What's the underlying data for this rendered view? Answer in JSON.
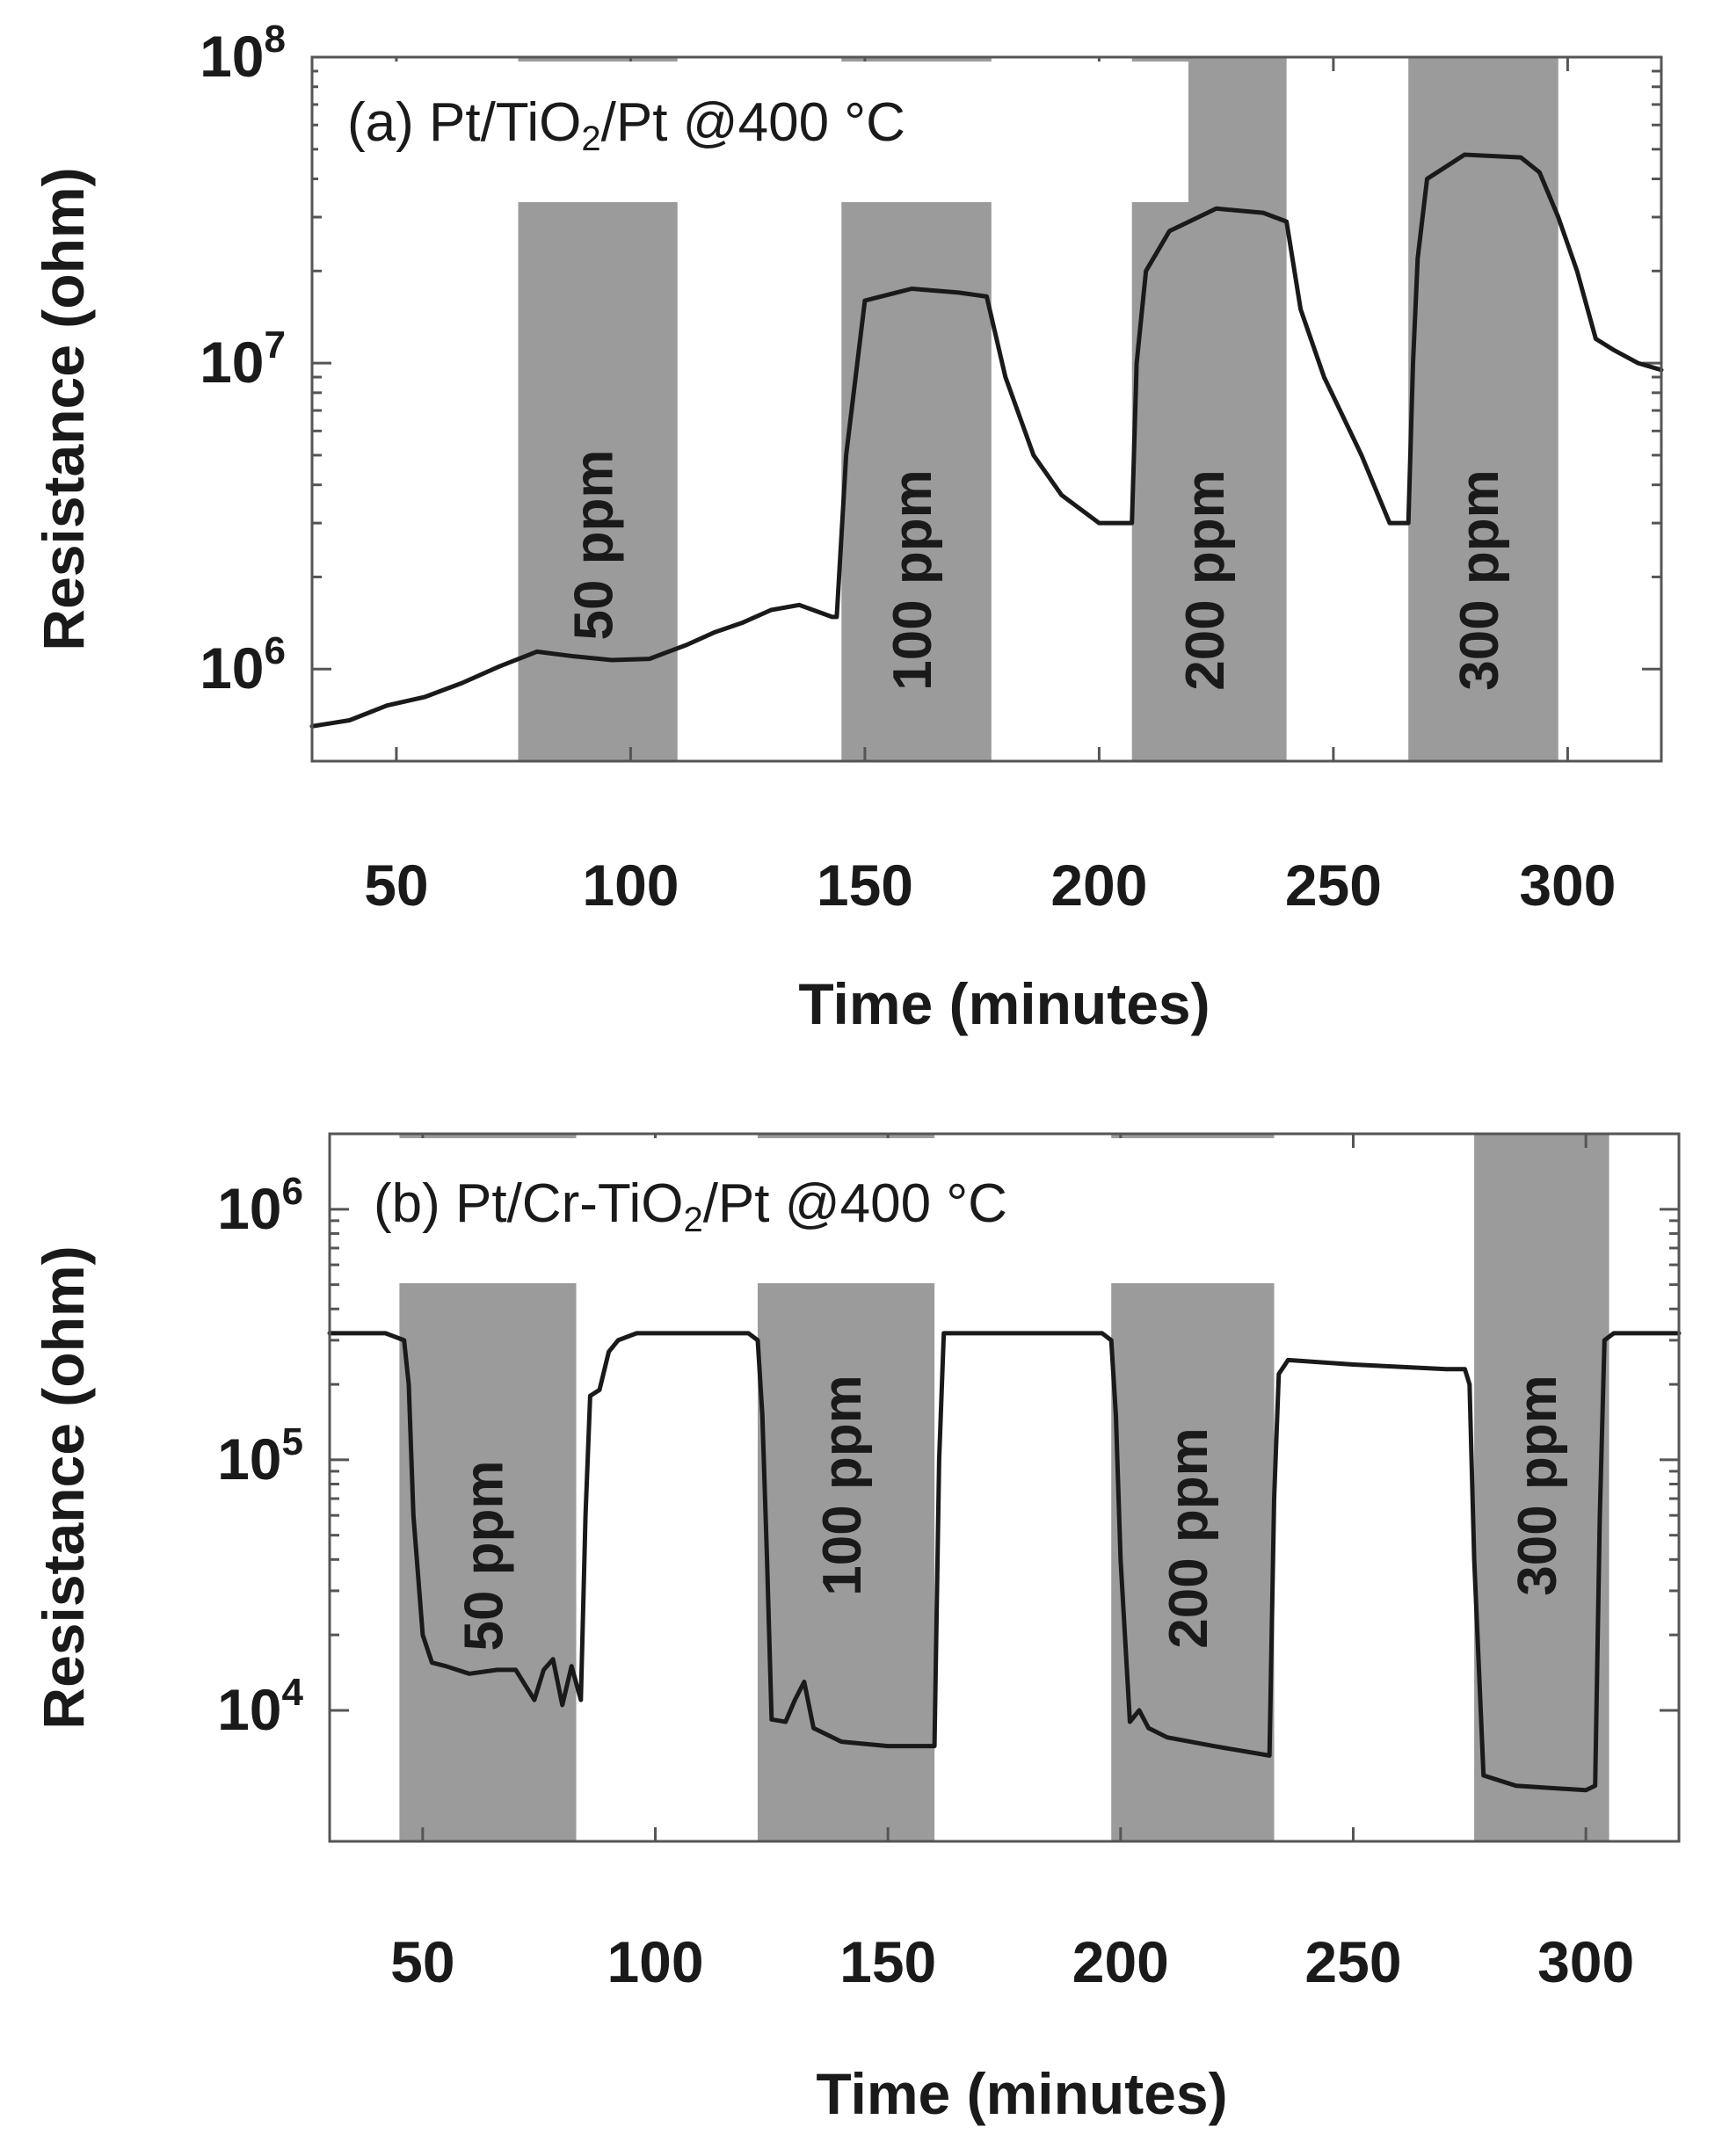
{
  "chart_data": [
    {
      "type": "line",
      "title_parts": [
        "(a) Pt/TiO",
        "2",
        "/Pt @400 °C"
      ],
      "xlabel": "Time (minutes)",
      "ylabel": "Resistance (ohm)",
      "y_scale": "log",
      "xlim": [
        32,
        320
      ],
      "ylim": [
        500000,
        100000000
      ],
      "x_ticks": [
        50,
        100,
        150,
        200,
        250,
        300
      ],
      "y_ticks": [
        {
          "value": 1000000,
          "base": "10",
          "exp": "6"
        },
        {
          "value": 10000000,
          "base": "10",
          "exp": "7"
        },
        {
          "value": 100000000,
          "base": "10",
          "exp": "8"
        }
      ],
      "bands": [
        {
          "label": "50 ppm",
          "x0": 76,
          "x1": 110
        },
        {
          "label": "100 ppm",
          "x0": 145,
          "x1": 177
        },
        {
          "label": "200 ppm",
          "x0": 207,
          "x1": 240
        },
        {
          "label": "300 ppm",
          "x0": 266,
          "x1": 298
        }
      ],
      "series": [
        {
          "x": [
            32,
            40,
            48,
            56,
            64,
            72,
            80,
            88,
            96,
            104,
            112,
            118,
            124,
            130,
            136,
            143,
            144,
            146,
            150,
            160,
            170,
            176,
            180,
            186,
            192,
            200,
            205,
            207,
            208,
            210,
            215,
            225,
            235,
            240,
            243,
            248,
            256,
            262,
            266,
            267,
            268,
            270,
            278,
            290,
            294,
            298,
            302,
            306,
            310,
            315,
            320
          ],
          "y": [
            650000,
            680000,
            760000,
            810000,
            900000,
            1020000,
            1140000,
            1100000,
            1070000,
            1080000,
            1200000,
            1320000,
            1420000,
            1560000,
            1620000,
            1480000,
            1480000,
            5000000,
            16000000,
            17500000,
            17000000,
            16500000,
            9000000,
            5000000,
            3700000,
            3000000,
            3000000,
            3000000,
            10000000,
            20000000,
            27000000,
            32000000,
            31000000,
            29000000,
            15000000,
            9000000,
            5000000,
            3000000,
            3000000,
            10000000,
            22000000,
            40000000,
            48000000,
            47000000,
            42000000,
            30000000,
            20000000,
            12000000,
            11000000,
            10000000,
            9500000
          ]
        }
      ]
    },
    {
      "type": "line",
      "title_parts": [
        "(b) Pt/Cr-TiO",
        "2",
        "/Pt @400 °C"
      ],
      "xlabel": "Time (minutes)",
      "ylabel": "Resistance (ohm)",
      "y_scale": "log",
      "xlim": [
        30,
        320
      ],
      "ylim": [
        3000,
        2000000
      ],
      "x_ticks": [
        50,
        100,
        150,
        200,
        250,
        300
      ],
      "y_ticks": [
        {
          "value": 10000,
          "base": "10",
          "exp": "4"
        },
        {
          "value": 100000,
          "base": "10",
          "exp": "5"
        },
        {
          "value": 1000000,
          "base": "10",
          "exp": "6"
        }
      ],
      "bands": [
        {
          "label": "50 ppm",
          "x0": 45,
          "x1": 83
        },
        {
          "label": "100 ppm",
          "x0": 122,
          "x1": 160
        },
        {
          "label": "200 ppm",
          "x0": 198,
          "x1": 233
        },
        {
          "label": "300 ppm",
          "x0": 276,
          "x1": 305
        }
      ],
      "series": [
        {
          "x": [
            30,
            42,
            46,
            47,
            48,
            50,
            52,
            55,
            60,
            66,
            70,
            74,
            76,
            78,
            80,
            82,
            84,
            85,
            86,
            88,
            90,
            92,
            96,
            110,
            120,
            122,
            123,
            124,
            125,
            128,
            130,
            132,
            134,
            140,
            150,
            160,
            161,
            162,
            164,
            180,
            196,
            198,
            199,
            200,
            202,
            204,
            206,
            210,
            220,
            232,
            233,
            234,
            236,
            250,
            270,
            274,
            275,
            276,
            278,
            285,
            300,
            302,
            303,
            304,
            306,
            320
          ],
          "y": [
            320000,
            320000,
            300000,
            200000,
            60000,
            20000,
            15500,
            15000,
            14000,
            14500,
            14500,
            11000,
            14500,
            16000,
            10500,
            15000,
            11000,
            60000,
            180000,
            190000,
            270000,
            300000,
            320000,
            320000,
            320000,
            300000,
            150000,
            40000,
            9200,
            9000,
            11000,
            13000,
            8500,
            7500,
            7200,
            7200,
            100000,
            320000,
            320000,
            320000,
            320000,
            300000,
            150000,
            40000,
            9000,
            10000,
            8500,
            7800,
            7200,
            6600,
            70000,
            220000,
            250000,
            240000,
            230000,
            230000,
            200000,
            40000,
            5500,
            5000,
            4800,
            5000,
            60000,
            300000,
            320000,
            320000
          ]
        }
      ]
    }
  ]
}
